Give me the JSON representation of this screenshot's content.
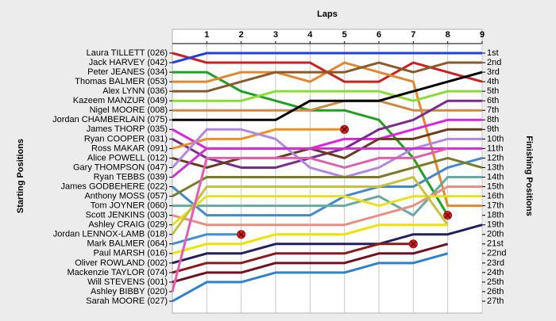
{
  "chart_data": {
    "type": "line",
    "title": "Laps",
    "y_label": "Starting Positions",
    "y2_label": "Finishing Positions",
    "x": [
      0,
      1,
      2,
      3,
      4,
      5,
      6,
      7,
      8,
      9
    ],
    "xlim": [
      0,
      9
    ],
    "xticks": [
      1,
      2,
      3,
      4,
      5,
      6,
      7,
      8,
      9
    ],
    "ylim": [
      27,
      1
    ],
    "yticks": [
      {
        "value": 1,
        "label": "Laura TILLETT (026)"
      },
      {
        "value": 2,
        "label": "Jack HARVEY (042)"
      },
      {
        "value": 3,
        "label": "Peter JEANES (034)"
      },
      {
        "value": 4,
        "label": "Thomas BALMER (053)"
      },
      {
        "value": 5,
        "label": "Alex LYNN (036)"
      },
      {
        "value": 6,
        "label": "Kazeem MANZUR (049)"
      },
      {
        "value": 7,
        "label": "Nigel MOORE (008)"
      },
      {
        "value": 8,
        "label": "Jordan CHAMBERLAIN (075)"
      },
      {
        "value": 9,
        "label": "James THORP (035)"
      },
      {
        "value": 10,
        "label": "Ryan COOPER (031)"
      },
      {
        "value": 11,
        "label": "Ross MAKAR (091)"
      },
      {
        "value": 12,
        "label": "Alice POWELL (012)"
      },
      {
        "value": 13,
        "label": "Gary THOMPSON (047)"
      },
      {
        "value": 14,
        "label": "Ryan TEBBS (039)"
      },
      {
        "value": 15,
        "label": "James GODBEHERE (022)"
      },
      {
        "value": 16,
        "label": "Anthony MOSS (057)"
      },
      {
        "value": 17,
        "label": "Tom JOYNER (060)"
      },
      {
        "value": 18,
        "label": "Scott JENKINS (003)"
      },
      {
        "value": 19,
        "label": "Ashley CRAIG (029)"
      },
      {
        "value": 20,
        "label": "Jordan LENNOX-LAMB (018)"
      },
      {
        "value": 21,
        "label": "Mark BALMER (064)"
      },
      {
        "value": 22,
        "label": "Paul MARSH (016)"
      },
      {
        "value": 23,
        "label": "Oliver ROWLAND (002)"
      },
      {
        "value": 24,
        "label": "Mackenzie TAYLOR (074)"
      },
      {
        "value": 25,
        "label": "Will STEVENS (001)"
      },
      {
        "value": 26,
        "label": "Ashley BIBBY (020)"
      },
      {
        "value": 27,
        "label": "Sarah MOORE (027)"
      }
    ],
    "y2lim": [
      27,
      1
    ],
    "y2ticks": [
      {
        "value": 1,
        "label": "1st"
      },
      {
        "value": 2,
        "label": "2nd"
      },
      {
        "value": 3,
        "label": "3rd"
      },
      {
        "value": 4,
        "label": "4th"
      },
      {
        "value": 5,
        "label": "5th"
      },
      {
        "value": 6,
        "label": "6th"
      },
      {
        "value": 7,
        "label": "7th"
      },
      {
        "value": 8,
        "label": "8th"
      },
      {
        "value": 9,
        "label": "9th"
      },
      {
        "value": 10,
        "label": "10th"
      },
      {
        "value": 11,
        "label": "11th"
      },
      {
        "value": 12,
        "label": "12th"
      },
      {
        "value": 13,
        "label": "13th"
      },
      {
        "value": 14,
        "label": "14th"
      },
      {
        "value": 15,
        "label": "15th"
      },
      {
        "value": 16,
        "label": "16th"
      },
      {
        "value": 17,
        "label": "17th"
      },
      {
        "value": 18,
        "label": "18th"
      },
      {
        "value": 19,
        "label": "19th"
      },
      {
        "value": 20,
        "label": "20th"
      },
      {
        "value": 21,
        "label": "21st"
      },
      {
        "value": 22,
        "label": "22nd"
      },
      {
        "value": 23,
        "label": "23rd"
      },
      {
        "value": 24,
        "label": "24th"
      },
      {
        "value": 25,
        "label": "25th"
      },
      {
        "value": 26,
        "label": "26th"
      },
      {
        "value": 27,
        "label": "27th"
      }
    ],
    "grid": true,
    "series": [
      {
        "color": "#cc2020",
        "values": [
          1,
          2,
          2,
          2,
          2,
          4,
          4,
          2,
          3,
          4
        ]
      },
      {
        "color": "#2040e0",
        "values": [
          2,
          1,
          1,
          1,
          1,
          1,
          1,
          1,
          1,
          1
        ]
      },
      {
        "color": "#20a020",
        "values": [
          3,
          3,
          5,
          6,
          7,
          7,
          8,
          12,
          18,
          null
        ],
        "retired": true
      },
      {
        "color": "#e08830",
        "values": [
          4,
          4,
          3,
          3,
          4,
          2,
          3,
          4,
          17,
          17
        ]
      },
      {
        "color": "#8b5a2b",
        "values": [
          5,
          5,
          4,
          3,
          3,
          3,
          2,
          3,
          2,
          2
        ]
      },
      {
        "color": "#88dd33",
        "values": [
          6,
          6,
          6,
          5,
          5,
          5,
          5,
          6,
          5,
          5
        ]
      },
      {
        "color": "#cc8844",
        "values": [
          7,
          7,
          7,
          7,
          7,
          6,
          6,
          7,
          7,
          7
        ]
      },
      {
        "color": "#000000",
        "values": [
          8,
          8,
          8,
          8,
          6,
          6,
          6,
          5,
          4,
          3
        ]
      },
      {
        "color": "#dd22dd",
        "values": [
          9,
          11,
          11,
          11,
          11,
          10,
          10,
          9,
          8,
          8
        ]
      },
      {
        "color": "#7a2a8a",
        "values": [
          10,
          12,
          13,
          13,
          12,
          11,
          9,
          8,
          6,
          6
        ]
      },
      {
        "color": "#f09020",
        "values": [
          11,
          10,
          10,
          9,
          9,
          9,
          null,
          null,
          null,
          null
        ],
        "retired": true
      },
      {
        "color": "#6b3a1a",
        "values": [
          12,
          13,
          12,
          12,
          11,
          12,
          10,
          10,
          9,
          9
        ]
      },
      {
        "color": "#b088e0",
        "values": [
          13,
          9,
          9,
          10,
          13,
          14,
          13,
          11,
          10,
          10
        ]
      },
      {
        "color": "#cc33cc",
        "values": [
          14,
          11,
          11,
          11,
          11,
          11,
          11,
          11,
          11,
          11
        ]
      },
      {
        "color": "#4488cc",
        "values": [
          15,
          18,
          18,
          18,
          18,
          16,
          15,
          15,
          13,
          12
        ]
      },
      {
        "color": "#7a7a2a",
        "values": [
          16,
          14,
          14,
          14,
          14,
          14,
          14,
          13,
          12,
          13
        ]
      },
      {
        "color": "#66aaa0",
        "values": [
          17,
          17,
          17,
          17,
          17,
          17,
          16,
          18,
          14,
          14
        ]
      },
      {
        "color": "#e89080",
        "values": [
          18,
          19,
          19,
          19,
          19,
          19,
          18,
          17,
          15,
          15
        ]
      },
      {
        "color": "#e8e020",
        "values": [
          19,
          16,
          16,
          16,
          16,
          16,
          17,
          16,
          16,
          16
        ]
      },
      {
        "color": "#c8c040",
        "values": [
          20,
          15,
          15,
          15,
          15,
          15,
          15,
          14,
          19,
          null
        ]
      },
      {
        "color": "#4090d0",
        "values": [
          21,
          20,
          20,
          null,
          null,
          null,
          null,
          null,
          null,
          null
        ],
        "retired": true
      },
      {
        "color": "#f0e000",
        "values": [
          22,
          21,
          21,
          20,
          20,
          20,
          19,
          19,
          19,
          null
        ]
      },
      {
        "color": "#202060",
        "values": [
          23,
          22,
          22,
          21,
          21,
          21,
          21,
          20,
          20,
          19
        ]
      },
      {
        "color": "#8b1a1a",
        "values": [
          24,
          23,
          23,
          22,
          22,
          22,
          21,
          21,
          null,
          null
        ],
        "retired": true
      },
      {
        "color": "#701020",
        "values": [
          25,
          24,
          24,
          23,
          23,
          23,
          22,
          22,
          21,
          null
        ]
      },
      {
        "color": "#e060b0",
        "values": [
          26,
          12,
          12,
          12,
          12,
          13,
          12,
          12,
          11,
          null
        ]
      },
      {
        "color": "#3080d0",
        "values": [
          27,
          25,
          25,
          24,
          24,
          24,
          23,
          23,
          22,
          null
        ]
      }
    ]
  }
}
